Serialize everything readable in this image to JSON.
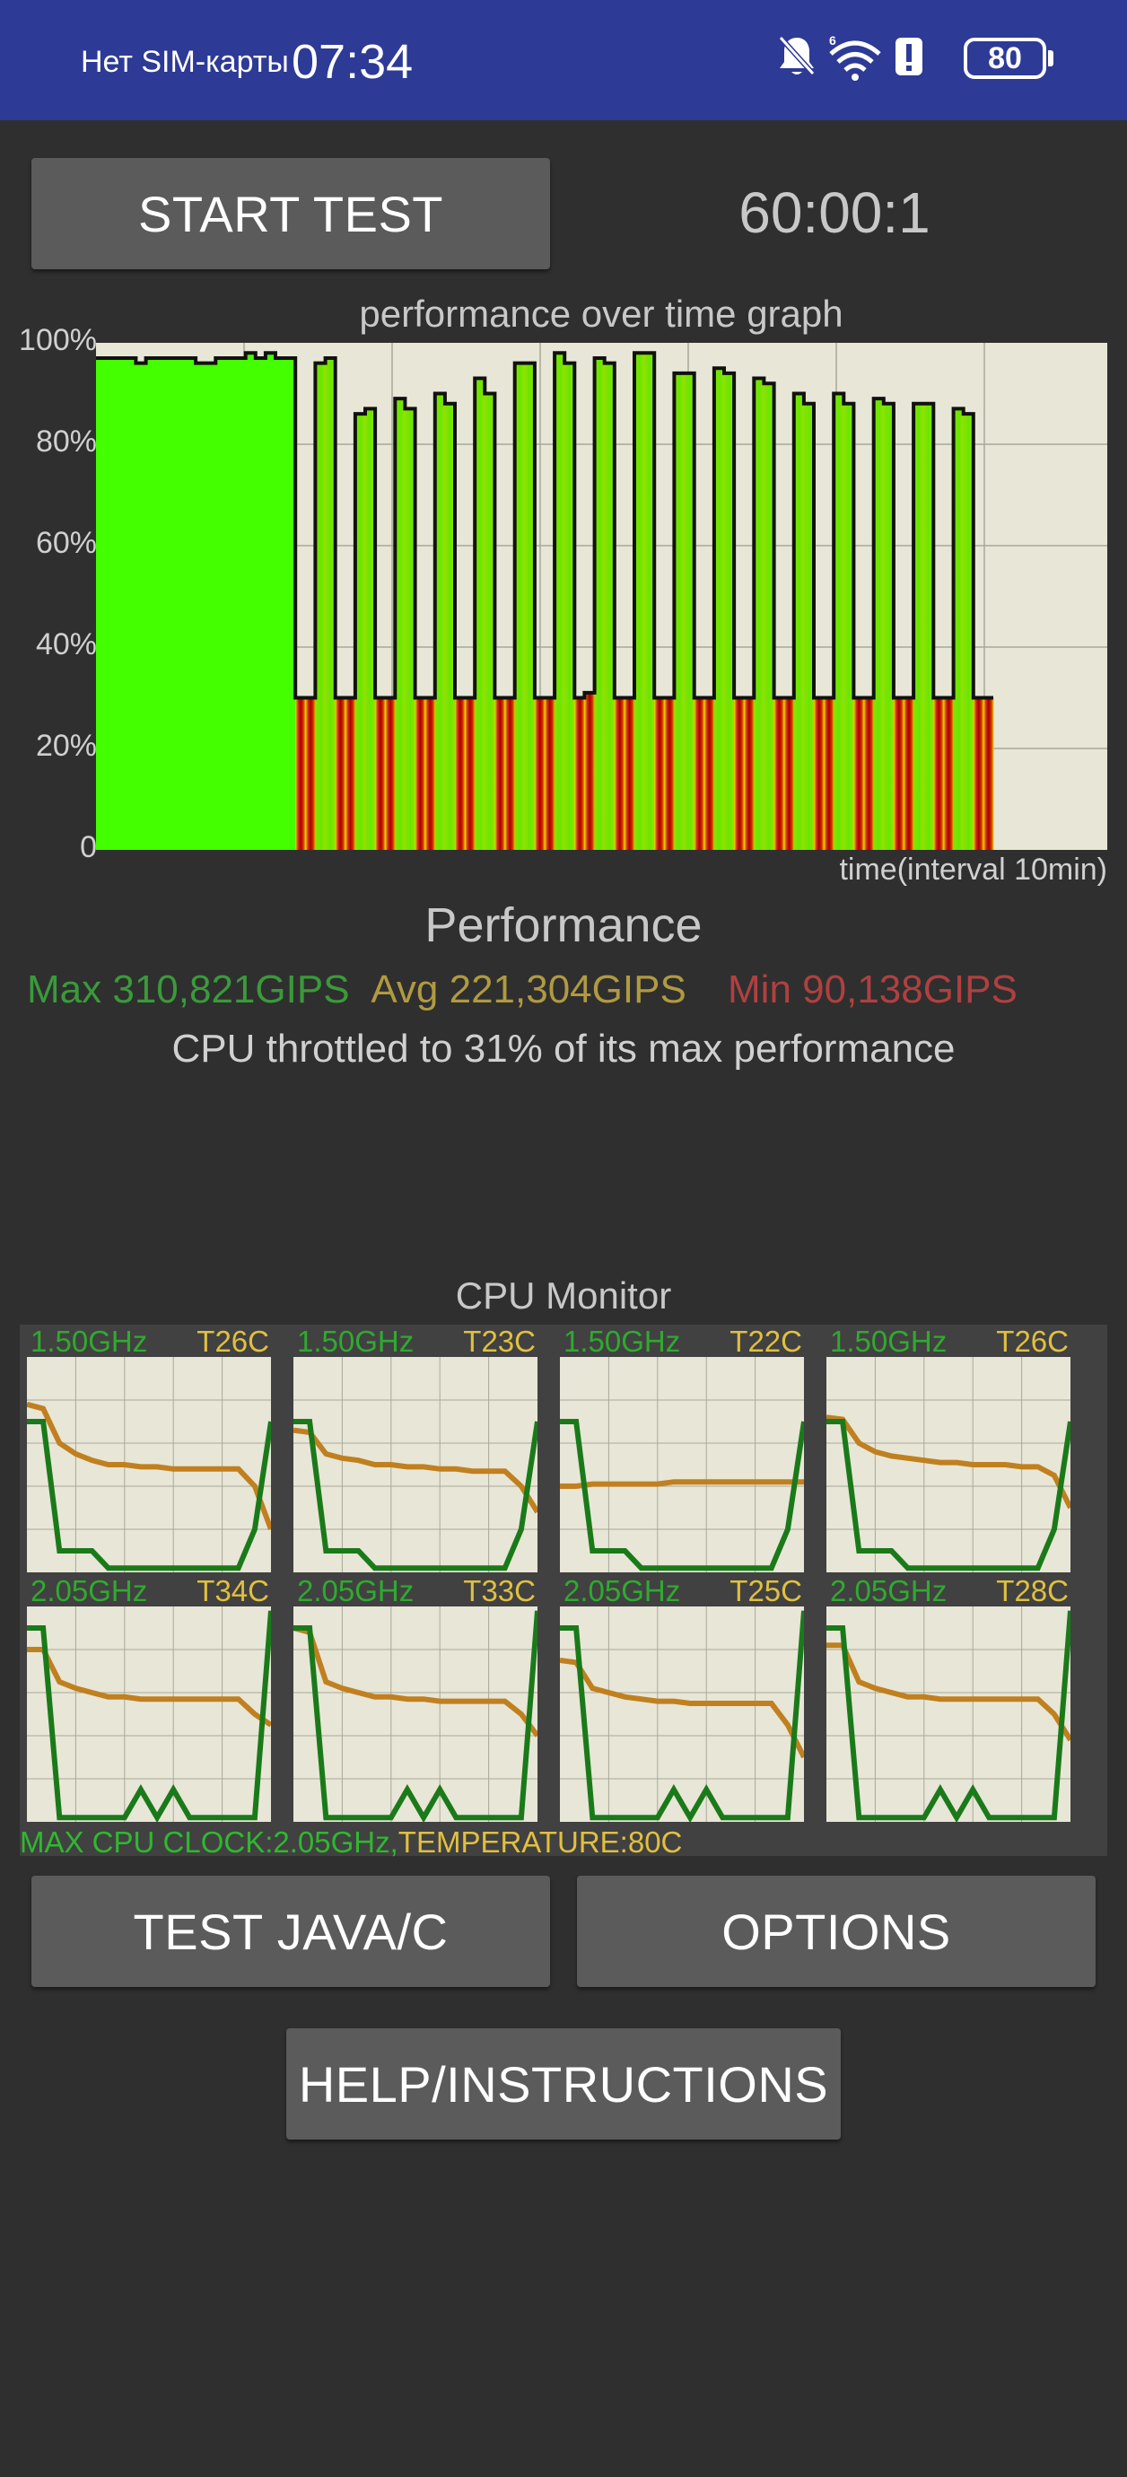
{
  "status_bar": {
    "carrier": "Нет SIM-карты",
    "time": "07:34",
    "battery": "80",
    "icons": [
      "bell-off-icon",
      "wifi-6-icon",
      "alert-icon",
      "battery-icon"
    ]
  },
  "controls": {
    "start_test": "START TEST",
    "timer": "60:00:1",
    "test_java_c": "TEST JAVA/C",
    "options": "OPTIONS",
    "help": "HELP/INSTRUCTIONS"
  },
  "graph": {
    "title": "performance over time graph",
    "y_ticks": [
      "100%",
      "80%",
      "60%",
      "40%",
      "20%",
      "0"
    ],
    "x_label": "time(interval 10min)"
  },
  "chart_data": {
    "type": "area",
    "ylim": [
      0,
      100
    ],
    "y_unit": "%",
    "series": [
      {
        "values": [
          97,
          97,
          97,
          97,
          96,
          97,
          97,
          97,
          97,
          97,
          96,
          96,
          97,
          97,
          97,
          98,
          97,
          98,
          97,
          97,
          30,
          30,
          96,
          97,
          30,
          30,
          86,
          87,
          30,
          30,
          89,
          87,
          30,
          30,
          90,
          88,
          30,
          30,
          93,
          90,
          30,
          30,
          96,
          96,
          30,
          30,
          98,
          96,
          30,
          31,
          97,
          96,
          30,
          30,
          98,
          98,
          30,
          30,
          94,
          94,
          30,
          30,
          95,
          94,
          30,
          30,
          93,
          92,
          30,
          30,
          90,
          88,
          30,
          30,
          90,
          88,
          30,
          30,
          89,
          88,
          30,
          30,
          88,
          88,
          30,
          30,
          87,
          86,
          30,
          30
        ]
      }
    ]
  },
  "performance": {
    "heading": "Performance",
    "max": "Max 310,821GIPS",
    "avg": "Avg 221,304GIPS",
    "min": "Min 90,138GIPS",
    "throttle": "CPU throttled to 31% of its max performance",
    "colors": {
      "max": "#3a9a3a",
      "avg": "#b09a40",
      "min": "#b04040"
    }
  },
  "cpu_monitor": {
    "title": "CPU Monitor",
    "cores": [
      {
        "freq": "1.50GHz",
        "temp": "T26C",
        "temp_line": [
          0.78,
          0.76,
          0.6,
          0.55,
          0.52,
          0.5,
          0.5,
          0.49,
          0.49,
          0.48,
          0.48,
          0.48,
          0.48,
          0.48,
          0.4,
          0.2
        ],
        "freq_line": [
          0.7,
          0.7,
          0.1,
          0.1,
          0.1,
          0.02,
          0.02,
          0.02,
          0.02,
          0.02,
          0.02,
          0.02,
          0.02,
          0.02,
          0.2,
          0.7
        ]
      },
      {
        "freq": "1.50GHz",
        "temp": "T23C",
        "temp_line": [
          0.66,
          0.65,
          0.55,
          0.53,
          0.52,
          0.5,
          0.5,
          0.49,
          0.49,
          0.48,
          0.48,
          0.47,
          0.47,
          0.47,
          0.4,
          0.28
        ],
        "freq_line": [
          0.7,
          0.7,
          0.1,
          0.1,
          0.1,
          0.02,
          0.02,
          0.02,
          0.02,
          0.02,
          0.02,
          0.02,
          0.02,
          0.02,
          0.2,
          0.7
        ]
      },
      {
        "freq": "1.50GHz",
        "temp": "T22C",
        "temp_line": [
          0.4,
          0.4,
          0.41,
          0.41,
          0.41,
          0.41,
          0.41,
          0.42,
          0.42,
          0.42,
          0.42,
          0.42,
          0.42,
          0.42,
          0.42,
          0.42
        ],
        "freq_line": [
          0.7,
          0.7,
          0.1,
          0.1,
          0.1,
          0.02,
          0.02,
          0.02,
          0.02,
          0.02,
          0.02,
          0.02,
          0.02,
          0.02,
          0.2,
          0.7
        ]
      },
      {
        "freq": "1.50GHz",
        "temp": "T26C",
        "temp_line": [
          0.72,
          0.71,
          0.6,
          0.56,
          0.54,
          0.53,
          0.52,
          0.51,
          0.51,
          0.5,
          0.5,
          0.5,
          0.49,
          0.49,
          0.45,
          0.3
        ],
        "freq_line": [
          0.7,
          0.7,
          0.1,
          0.1,
          0.1,
          0.02,
          0.02,
          0.02,
          0.02,
          0.02,
          0.02,
          0.02,
          0.02,
          0.02,
          0.2,
          0.7
        ]
      },
      {
        "freq": "2.05GHz",
        "temp": "T34C",
        "temp_line": [
          0.8,
          0.8,
          0.65,
          0.62,
          0.6,
          0.58,
          0.58,
          0.57,
          0.57,
          0.57,
          0.57,
          0.57,
          0.57,
          0.57,
          0.5,
          0.45
        ],
        "freq_line": [
          0.9,
          0.9,
          0.02,
          0.02,
          0.02,
          0.02,
          0.02,
          0.15,
          0.02,
          0.15,
          0.02,
          0.02,
          0.02,
          0.02,
          0.02,
          0.98
        ]
      },
      {
        "freq": "2.05GHz",
        "temp": "T33C",
        "temp_line": [
          0.9,
          0.88,
          0.65,
          0.62,
          0.6,
          0.58,
          0.58,
          0.57,
          0.57,
          0.56,
          0.56,
          0.56,
          0.56,
          0.56,
          0.5,
          0.4
        ],
        "freq_line": [
          0.9,
          0.9,
          0.02,
          0.02,
          0.02,
          0.02,
          0.02,
          0.15,
          0.02,
          0.15,
          0.02,
          0.02,
          0.02,
          0.02,
          0.02,
          0.98
        ]
      },
      {
        "freq": "2.05GHz",
        "temp": "T25C",
        "temp_line": [
          0.75,
          0.74,
          0.62,
          0.6,
          0.58,
          0.57,
          0.56,
          0.56,
          0.55,
          0.55,
          0.55,
          0.55,
          0.55,
          0.55,
          0.45,
          0.3
        ],
        "freq_line": [
          0.9,
          0.9,
          0.02,
          0.02,
          0.02,
          0.02,
          0.02,
          0.15,
          0.02,
          0.15,
          0.02,
          0.02,
          0.02,
          0.02,
          0.02,
          0.98
        ]
      },
      {
        "freq": "2.05GHz",
        "temp": "T28C",
        "temp_line": [
          0.82,
          0.82,
          0.65,
          0.62,
          0.6,
          0.58,
          0.58,
          0.57,
          0.57,
          0.57,
          0.57,
          0.57,
          0.57,
          0.57,
          0.5,
          0.38
        ],
        "freq_line": [
          0.9,
          0.9,
          0.02,
          0.02,
          0.02,
          0.02,
          0.02,
          0.15,
          0.02,
          0.15,
          0.02,
          0.02,
          0.02,
          0.02,
          0.02,
          0.98
        ]
      }
    ],
    "footer_clock": "MAX CPU CLOCK:2.05GHz,",
    "footer_temp": "TEMPERATURE:80C"
  }
}
